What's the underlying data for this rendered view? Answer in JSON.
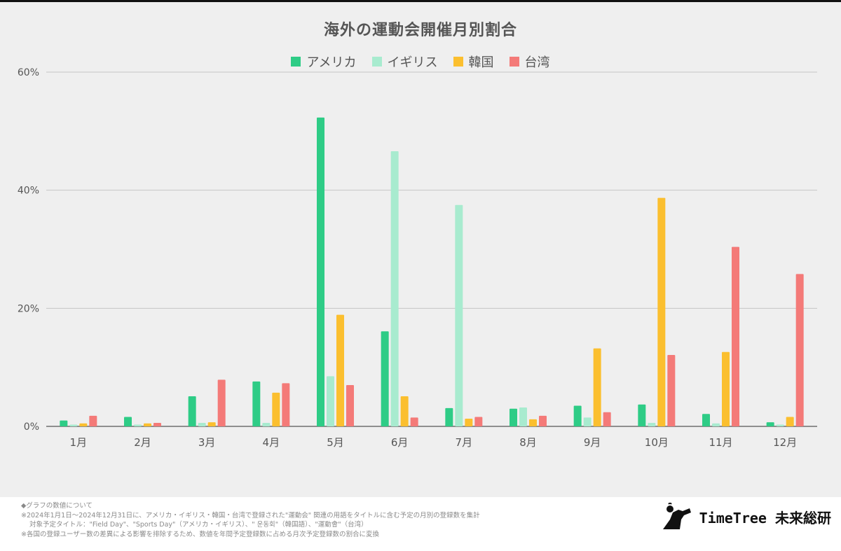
{
  "chart_data": {
    "type": "bar",
    "title": "海外の運動会開催月別割合",
    "categories": [
      "1月",
      "2月",
      "3月",
      "4月",
      "5月",
      "6月",
      "7月",
      "8月",
      "9月",
      "10月",
      "11月",
      "12月"
    ],
    "series": [
      {
        "name": "アメリカ",
        "color": "#2ecc86",
        "values": [
          1.0,
          1.6,
          5.1,
          7.6,
          52.3,
          16.1,
          3.1,
          3.0,
          3.5,
          3.7,
          2.1,
          0.7
        ]
      },
      {
        "name": "イギリス",
        "color": "#a8ebcf",
        "values": [
          0.3,
          0.3,
          0.6,
          0.6,
          8.5,
          46.6,
          37.5,
          3.2,
          1.5,
          0.6,
          0.5,
          0.3
        ]
      },
      {
        "name": "韓国",
        "color": "#fbbf2f",
        "values": [
          0.5,
          0.5,
          0.7,
          5.7,
          18.9,
          5.1,
          1.3,
          1.2,
          13.2,
          38.7,
          12.6,
          1.6
        ]
      },
      {
        "name": "台湾",
        "color": "#f47a78",
        "values": [
          1.8,
          0.6,
          7.9,
          7.3,
          7.0,
          1.5,
          1.6,
          1.8,
          2.4,
          12.1,
          30.4,
          25.8
        ]
      }
    ],
    "yticks": [
      "0%",
      "20%",
      "40%",
      "60%"
    ],
    "ylim": [
      0,
      60
    ],
    "grid": true,
    "legend_position": "top-center"
  },
  "footer": {
    "notes": [
      "◆グラフの数値について",
      "※2024年1月1日〜2024年12月31日に、アメリカ・イギリス・韓国・台湾で登録された\"運動会\" 関連の用語をタイトルに含む予定の月別の登録数を集計",
      "対象予定タイトル：\"Field Day\"、\"Sports Day\"（アメリカ・イギリス）、\" 운동회\"（韓国語）、\"運動會\"（台湾）",
      "※各国の登録ユーザー数の差異による影響を排除するため、数値を年間予定登録数に占める月次予定登録数の割合に変換"
    ],
    "brand": "TimeTree 未来総研"
  }
}
